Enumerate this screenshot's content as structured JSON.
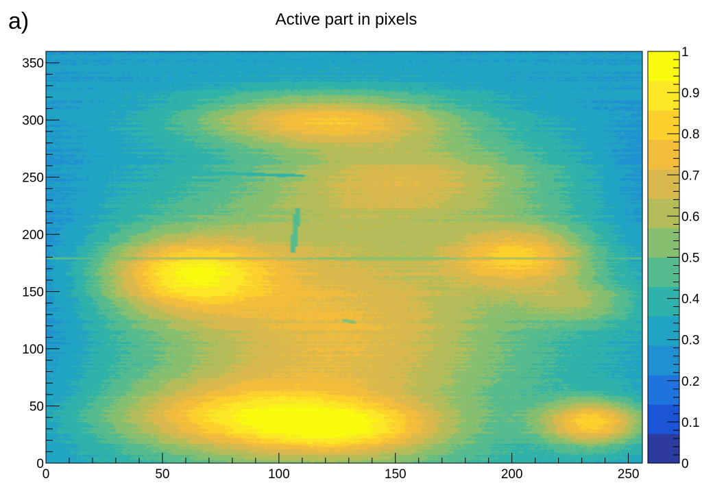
{
  "panel_label": "a)",
  "chart_data": {
    "type": "heatmap",
    "title": "Active part in pixels",
    "xlabel": "",
    "ylabel": "",
    "xlim": [
      0,
      256
    ],
    "ylim": [
      0,
      360
    ],
    "zlim": [
      0,
      1
    ],
    "x_ticks": [
      0,
      50,
      100,
      150,
      200,
      250
    ],
    "y_ticks": [
      0,
      50,
      100,
      150,
      200,
      250,
      300,
      350
    ],
    "z_ticks": [
      0,
      0.1,
      0.2,
      0.3,
      0.4,
      0.5,
      0.6,
      0.7,
      0.8,
      0.9,
      1
    ],
    "z_tick_labels": [
      "0",
      "0.1",
      "0.2",
      "0.3",
      "0.4",
      "0.5",
      "0.6",
      "0.7",
      "0.8",
      "0.9",
      "1"
    ],
    "grid": false,
    "colorbar": "right",
    "palette": [
      "#2d3a9e",
      "#1c54d6",
      "#1e74dc",
      "#2090d3",
      "#21a3c4",
      "#2fb2a9",
      "#55bb8f",
      "#86bf70",
      "#b4bd5a",
      "#d9b94d",
      "#f2bd3d",
      "#fcd02d",
      "#fbe725",
      "#f9fb0e"
    ],
    "features": {
      "background_level": 0.3,
      "hot_spots": [
        {
          "x": 60,
          "y": 165,
          "value": 0.95
        },
        {
          "x": 205,
          "y": 180,
          "value": 0.95
        },
        {
          "x": 70,
          "y": 40,
          "value": 0.9
        },
        {
          "x": 130,
          "y": 30,
          "value": 0.9
        },
        {
          "x": 235,
          "y": 35,
          "value": 0.8
        },
        {
          "x": 120,
          "y": 300,
          "value": 0.8
        }
      ],
      "dead_lines": [
        {
          "from": [
            30,
            257
          ],
          "to": [
            110,
            251
          ],
          "value": 0.35
        },
        {
          "from": [
            108,
            222
          ],
          "to": [
            106,
            185
          ],
          "value": 0.4
        },
        {
          "from": [
            0,
            179
          ],
          "to": [
            256,
            179
          ],
          "value": 0.5
        },
        {
          "from": [
            128,
            125
          ],
          "to": [
            132,
            123
          ],
          "value": 0.4
        }
      ]
    }
  }
}
